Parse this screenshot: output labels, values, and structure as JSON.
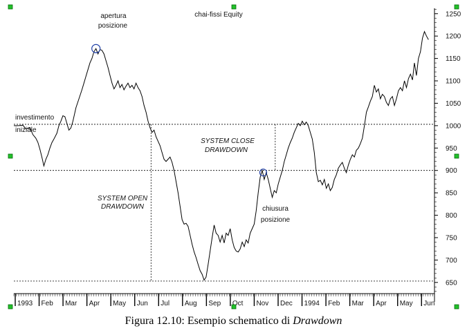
{
  "caption": {
    "prefix": "Figura 12.10: Esempio schematico di ",
    "emphasis": "Drawdown"
  },
  "chart_data": {
    "type": "line",
    "title": "chai-fissi Equity",
    "xlabel": "",
    "ylabel": "",
    "ylim": [
      625,
      1262
    ],
    "y_ticks": [
      650,
      700,
      750,
      800,
      850,
      900,
      950,
      1000,
      1050,
      1100,
      1150,
      1200,
      1250
    ],
    "x_labels": [
      "1993",
      "Feb",
      "Mar",
      "Apr",
      "May",
      "Jun",
      "Jul",
      "Aug",
      "Sep",
      "Oct",
      "Nov",
      "Dec",
      "1994",
      "Feb",
      "Mar",
      "Apr",
      "May",
      "Jun"
    ],
    "grid": false,
    "series": [
      {
        "points": [
          [
            0,
            1000
          ],
          [
            2.5,
            1000
          ],
          [
            4.5,
            1001
          ],
          [
            6,
            993
          ],
          [
            8,
            996
          ],
          [
            9.5,
            980
          ],
          [
            11,
            972
          ],
          [
            12,
            963
          ],
          [
            13,
            948
          ],
          [
            14,
            930
          ],
          [
            15,
            910
          ],
          [
            16,
            925
          ],
          [
            17,
            935
          ],
          [
            18,
            950
          ],
          [
            19,
            962
          ],
          [
            20,
            970
          ],
          [
            21.5,
            983
          ],
          [
            22.5,
            1000
          ],
          [
            23.5,
            1010
          ],
          [
            24.5,
            1022
          ],
          [
            25.5,
            1020
          ],
          [
            26.5,
            1005
          ],
          [
            27.5,
            990
          ],
          [
            28.5,
            995
          ],
          [
            29.5,
            1010
          ],
          [
            31,
            1040
          ],
          [
            32.5,
            1060
          ],
          [
            34,
            1080
          ],
          [
            35,
            1095
          ],
          [
            36,
            1110
          ],
          [
            37,
            1125
          ],
          [
            38,
            1140
          ],
          [
            39,
            1150
          ],
          [
            40,
            1165
          ],
          [
            41,
            1172
          ],
          [
            42,
            1160
          ],
          [
            43,
            1170
          ],
          [
            44,
            1168
          ],
          [
            45,
            1160
          ],
          [
            46,
            1145
          ],
          [
            47,
            1130
          ],
          [
            48,
            1112
          ],
          [
            49,
            1095
          ],
          [
            50,
            1082
          ],
          [
            51,
            1090
          ],
          [
            52,
            1100
          ],
          [
            53,
            1085
          ],
          [
            54,
            1092
          ],
          [
            55,
            1080
          ],
          [
            56,
            1088
          ],
          [
            57,
            1095
          ],
          [
            58,
            1085
          ],
          [
            59,
            1090
          ],
          [
            60,
            1082
          ],
          [
            61,
            1095
          ],
          [
            62,
            1085
          ],
          [
            63,
            1078
          ],
          [
            64,
            1065
          ],
          [
            65,
            1045
          ],
          [
            66,
            1030
          ],
          [
            67,
            1010
          ],
          [
            68,
            995
          ],
          [
            69,
            985
          ],
          [
            70,
            990
          ],
          [
            71,
            975
          ],
          [
            72,
            965
          ],
          [
            73,
            955
          ],
          [
            74,
            940
          ],
          [
            75,
            925
          ],
          [
            76,
            920
          ],
          [
            77,
            925
          ],
          [
            78,
            930
          ],
          [
            79,
            918
          ],
          [
            80,
            900
          ],
          [
            81,
            875
          ],
          [
            82,
            850
          ],
          [
            83,
            820
          ],
          [
            84,
            790
          ],
          [
            85,
            780
          ],
          [
            86,
            782
          ],
          [
            87,
            775
          ],
          [
            88,
            755
          ],
          [
            89,
            735
          ],
          [
            90,
            718
          ],
          [
            91,
            705
          ],
          [
            92,
            690
          ],
          [
            93,
            676
          ],
          [
            94,
            668
          ],
          [
            95,
            655
          ],
          [
            96,
            662
          ],
          [
            97,
            690
          ],
          [
            98,
            720
          ],
          [
            99,
            750
          ],
          [
            100,
            778
          ],
          [
            101,
            760
          ],
          [
            102,
            755
          ],
          [
            103,
            740
          ],
          [
            104,
            755
          ],
          [
            105,
            738
          ],
          [
            106,
            760
          ],
          [
            107,
            755
          ],
          [
            108,
            770
          ],
          [
            109,
            745
          ],
          [
            110,
            728
          ],
          [
            111,
            720
          ],
          [
            112,
            718
          ],
          [
            113,
            725
          ],
          [
            114,
            740
          ],
          [
            115,
            730
          ],
          [
            116,
            745
          ],
          [
            117,
            738
          ],
          [
            118,
            760
          ],
          [
            119,
            770
          ],
          [
            120,
            780
          ],
          [
            121,
            810
          ],
          [
            122,
            850
          ],
          [
            123,
            885
          ],
          [
            124,
            900
          ],
          [
            125,
            880
          ],
          [
            126,
            895
          ],
          [
            127,
            880
          ],
          [
            128,
            860
          ],
          [
            129,
            840
          ],
          [
            130,
            855
          ],
          [
            131,
            850
          ],
          [
            132,
            870
          ],
          [
            133,
            885
          ],
          [
            134,
            900
          ],
          [
            135,
            920
          ],
          [
            136,
            935
          ],
          [
            137,
            950
          ],
          [
            138,
            962
          ],
          [
            139,
            972
          ],
          [
            140,
            985
          ],
          [
            141,
            995
          ],
          [
            142,
            1005
          ],
          [
            143,
            1000
          ],
          [
            144,
            1010
          ],
          [
            145,
            1002
          ],
          [
            146,
            1008
          ],
          [
            147,
            1000
          ],
          [
            148,
            985
          ],
          [
            149,
            970
          ],
          [
            150,
            940
          ],
          [
            151,
            895
          ],
          [
            152,
            875
          ],
          [
            153,
            878
          ],
          [
            154,
            868
          ],
          [
            155,
            880
          ],
          [
            156,
            860
          ],
          [
            157,
            870
          ],
          [
            158,
            855
          ],
          [
            159,
            862
          ],
          [
            160,
            880
          ],
          [
            161,
            890
          ],
          [
            162,
            905
          ],
          [
            163,
            912
          ],
          [
            164,
            918
          ],
          [
            165,
            905
          ],
          [
            166,
            895
          ],
          [
            167,
            912
          ],
          [
            168,
            925
          ],
          [
            169,
            935
          ],
          [
            170,
            930
          ],
          [
            171,
            945
          ],
          [
            172,
            950
          ],
          [
            173,
            960
          ],
          [
            174,
            972
          ],
          [
            175,
            1000
          ],
          [
            176,
            1030
          ],
          [
            177,
            1042
          ],
          [
            178,
            1055
          ],
          [
            179,
            1065
          ],
          [
            180,
            1090
          ],
          [
            181,
            1075
          ],
          [
            182,
            1082
          ],
          [
            183,
            1060
          ],
          [
            184,
            1070
          ],
          [
            185,
            1065
          ],
          [
            186,
            1052
          ],
          [
            187,
            1045
          ],
          [
            188,
            1060
          ],
          [
            189,
            1065
          ],
          [
            190,
            1045
          ],
          [
            191,
            1060
          ],
          [
            192,
            1078
          ],
          [
            193,
            1085
          ],
          [
            194,
            1078
          ],
          [
            195,
            1100
          ],
          [
            196,
            1085
          ],
          [
            197,
            1105
          ],
          [
            198,
            1115
          ],
          [
            199,
            1102
          ],
          [
            200,
            1140
          ],
          [
            201,
            1112
          ],
          [
            202,
            1150
          ],
          [
            203,
            1165
          ],
          [
            204,
            1195
          ],
          [
            205,
            1210
          ],
          [
            206,
            1200
          ],
          [
            207,
            1192
          ]
        ]
      }
    ],
    "annotations": {
      "opening": [
        "apertura",
        "posizione"
      ],
      "initial_investment": [
        "investimento",
        "iniziale"
      ],
      "close_drawdown": [
        "SYSTEM CLOSE",
        "DRAWDOWN"
      ],
      "open_drawdown": [
        "SYSTEM OPEN",
        "DRAWDOWN"
      ],
      "closing": [
        "chiusura",
        "posizione"
      ]
    },
    "reference_levels": {
      "initial_investment": 1003,
      "closing_level": 900,
      "low": 653
    },
    "markers": {
      "opening_x": 41,
      "closing_x": 124.5,
      "low_x": 95
    }
  }
}
